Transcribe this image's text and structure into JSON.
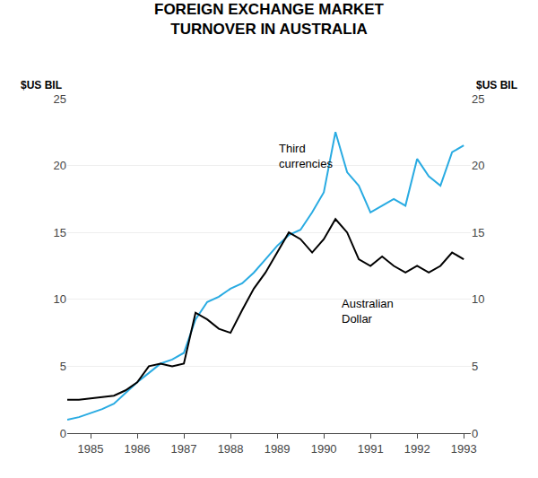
{
  "chart_data": {
    "type": "line",
    "title": "FOREIGN EXCHANGE MARKET\nTURNOVER IN AUSTRALIA",
    "ylabel": "$US BIL",
    "y2label": "$US BIL",
    "x": [
      1984.5,
      1984.75,
      1985.0,
      1985.25,
      1985.5,
      1985.75,
      1986.0,
      1986.25,
      1986.5,
      1986.75,
      1987.0,
      1987.25,
      1987.5,
      1987.75,
      1988.0,
      1988.25,
      1988.5,
      1988.75,
      1989.0,
      1989.25,
      1989.5,
      1989.75,
      1990.0,
      1990.25,
      1990.5,
      1990.75,
      1991.0,
      1991.25,
      1991.5,
      1991.75,
      1992.0,
      1992.25,
      1992.5,
      1992.75,
      1993.0
    ],
    "series": [
      {
        "color": "#29abe2",
        "values": [
          1.0,
          1.2,
          1.5,
          1.8,
          2.2,
          3.0,
          3.8,
          4.5,
          5.2,
          5.5,
          6.0,
          8.5,
          9.8,
          10.2,
          10.8,
          11.2,
          12.0,
          13.0,
          14.0,
          14.8,
          15.2,
          16.5,
          18.0,
          22.5,
          19.5,
          18.5,
          16.5,
          17.0,
          17.5,
          17.0,
          20.5,
          19.2,
          18.5,
          21.0,
          21.5
        ]
      },
      {
        "color": "#000000",
        "values": [
          2.5,
          2.5,
          2.6,
          2.7,
          2.8,
          3.2,
          3.8,
          5.0,
          5.2,
          5.0,
          5.2,
          9.0,
          8.5,
          7.8,
          7.5,
          9.2,
          10.8,
          12.0,
          13.5,
          15.0,
          14.5,
          13.5,
          14.5,
          16.0,
          15.0,
          13.0,
          12.5,
          13.2,
          12.5,
          12.0,
          12.5,
          12.0,
          12.5,
          13.5,
          13.0
        ]
      }
    ],
    "annotations": [
      {
        "text": "Third\ncurrencies",
        "x": 1989.0,
        "y": 19.5
      },
      {
        "text": "Australian\nDollar",
        "x": 1990.35,
        "y": 10.3
      }
    ],
    "xlim": [
      1984.5,
      1993.15
    ],
    "xticks": [
      1985,
      1986,
      1987,
      1988,
      1989,
      1990,
      1991,
      1992,
      1993
    ],
    "ylim": [
      0,
      25
    ],
    "yticks": [
      0,
      5,
      10,
      15,
      20,
      25
    ],
    "y2lim": [
      0,
      25
    ],
    "y2ticks": [
      0,
      5,
      10,
      15,
      20,
      25
    ],
    "grid": "y"
  }
}
